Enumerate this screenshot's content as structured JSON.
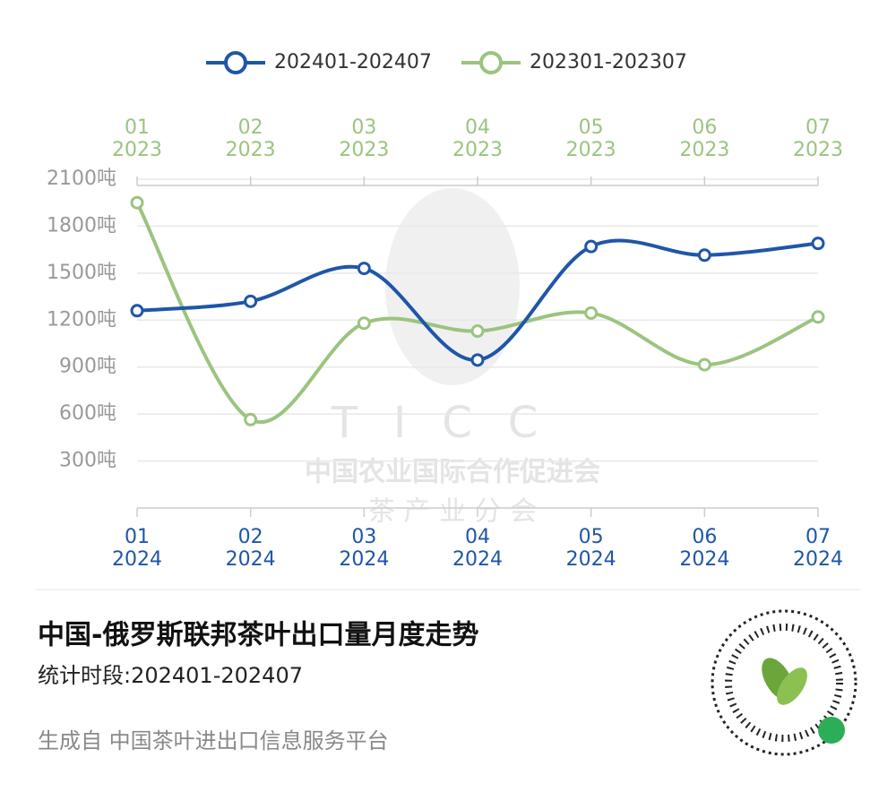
{
  "chart_data": {
    "type": "line",
    "categories": [
      "01",
      "02",
      "03",
      "04",
      "05",
      "06",
      "07"
    ],
    "bottom_year_labels": [
      "2024",
      "2024",
      "2024",
      "2024",
      "2024",
      "2024",
      "2024"
    ],
    "top_year_labels": [
      "2023",
      "2023",
      "2023",
      "2023",
      "2023",
      "2023",
      "2023"
    ],
    "series": [
      {
        "name": "202401-202407",
        "color": "#1f56a8",
        "values": [
          1260,
          1320,
          1530,
          945,
          1670,
          1615,
          1690
        ]
      },
      {
        "name": "202301-202307",
        "color": "#9bc47f",
        "values": [
          1950,
          565,
          1180,
          1130,
          1245,
          915,
          1220
        ]
      }
    ],
    "ylim": [
      0,
      2100
    ],
    "yticks": [
      {
        "value": 300,
        "label": "300吨"
      },
      {
        "value": 600,
        "label": "600吨"
      },
      {
        "value": 900,
        "label": "900吨"
      },
      {
        "value": 1200,
        "label": "1200吨"
      },
      {
        "value": 1500,
        "label": "1500吨"
      },
      {
        "value": 1800,
        "label": "1800吨"
      },
      {
        "value": 2100,
        "label": "2100吨"
      }
    ],
    "grid": true,
    "watermark": {
      "logo": "TICC",
      "org": "中国农业国际合作促进会",
      "branch": "茶 产 业 分 会"
    },
    "title": "中国-俄罗斯联邦茶叶出口量月度走势",
    "subtitle": "统计时段:202401-202407",
    "source": "生成自 中国茶叶进出口信息服务平台"
  }
}
